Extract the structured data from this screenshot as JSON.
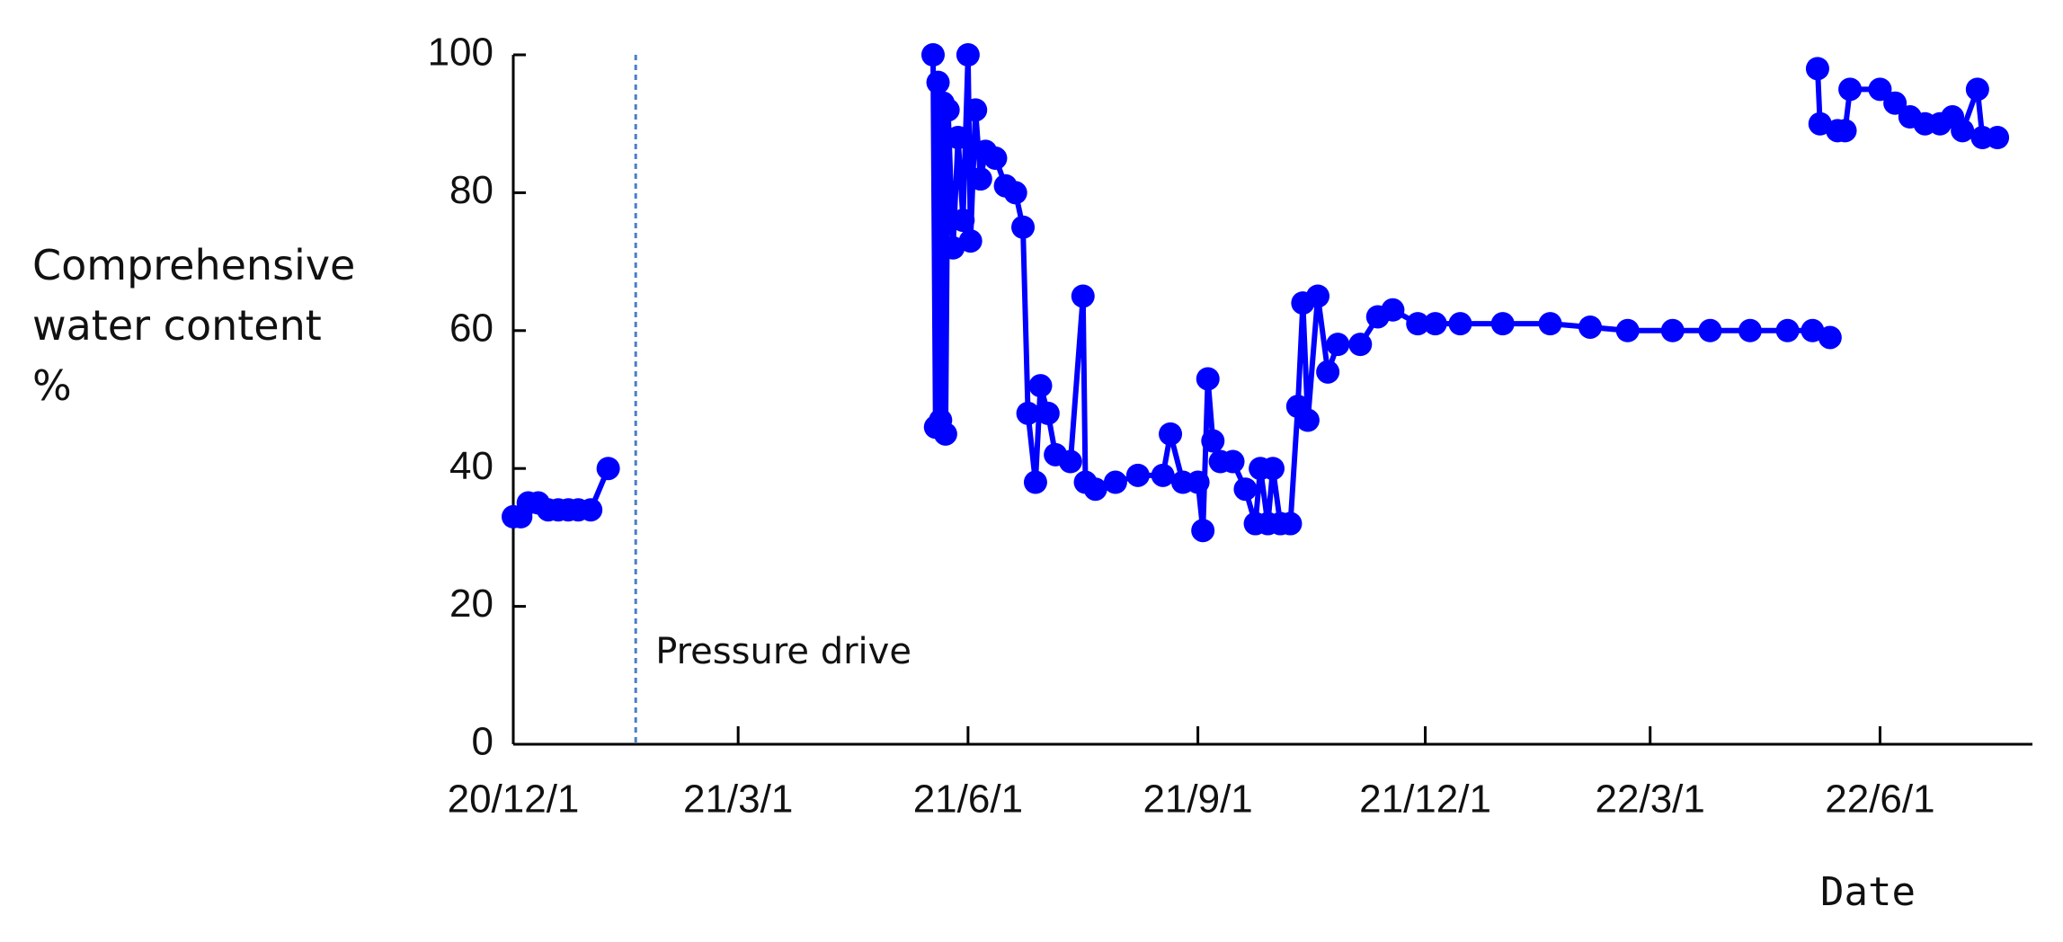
{
  "chart_data": {
    "type": "line",
    "ylabel": "Comprehensive water content %",
    "xlabel": "Date",
    "color": "#0000ff",
    "markers": true,
    "vline": {
      "x": "2021-01-19",
      "label": "Pressure drive",
      "color": "#4a7fc8"
    },
    "xlim": [
      "2020-12-01",
      "2022-08-01"
    ],
    "xticks": [
      {
        "value": "2020-12-01",
        "label": "20/12/1"
      },
      {
        "value": "2021-03-01",
        "label": "21/3/1"
      },
      {
        "value": "2021-06-01",
        "label": "21/6/1"
      },
      {
        "value": "2021-09-01",
        "label": "21/9/1"
      },
      {
        "value": "2021-12-01",
        "label": "21/12/1"
      },
      {
        "value": "2022-03-01",
        "label": "22/3/1"
      },
      {
        "value": "2022-06-01",
        "label": "22/6/1"
      }
    ],
    "ylim": [
      0,
      100
    ],
    "yticks": [
      0,
      20,
      40,
      60,
      80,
      100
    ],
    "x": [
      "2020-12-01",
      "2020-12-04",
      "2020-12-07",
      "2020-12-11",
      "2020-12-15",
      "2020-12-19",
      "2020-12-23",
      "2020-12-27",
      "2021-01-01",
      "2021-01-08",
      "2021-03-01",
      "2021-05-18",
      "2021-05-19",
      "2021-05-20",
      "2021-05-21",
      "2021-05-22",
      "2021-05-23",
      "2021-05-24",
      "2021-05-26",
      "2021-05-28",
      "2021-05-30",
      "2021-06-01",
      "2021-06-02",
      "2021-06-04",
      "2021-06-06",
      "2021-06-08",
      "2021-06-12",
      "2021-06-16",
      "2021-06-20",
      "2021-06-23",
      "2021-06-25",
      "2021-06-28",
      "2021-06-30",
      "2021-07-03",
      "2021-07-06",
      "2021-07-12",
      "2021-07-17",
      "2021-07-18",
      "2021-07-22",
      "2021-07-30",
      "2021-08-08",
      "2021-08-18",
      "2021-08-21",
      "2021-08-26",
      "2021-09-01",
      "2021-09-03",
      "2021-09-05",
      "2021-09-07",
      "2021-09-10",
      "2021-09-15",
      "2021-09-20",
      "2021-09-24",
      "2021-09-26",
      "2021-09-29",
      "2021-10-01",
      "2021-10-04",
      "2021-10-08",
      "2021-10-11",
      "2021-10-13",
      "2021-10-15",
      "2021-10-19",
      "2021-10-23",
      "2021-10-27",
      "2021-11-05",
      "2021-11-12",
      "2021-11-18",
      "2021-11-28",
      "2021-12-05",
      "2021-12-15",
      "2022-01-01",
      "2022-01-20",
      "2022-02-05",
      "2022-02-20",
      "2022-03-10",
      "2022-03-25",
      "2022-04-10",
      "2022-04-25",
      "2022-05-05",
      "2022-05-12",
      "2022-05-14",
      "2022-05-07",
      "2022-05-08",
      "2022-05-15",
      "2022-05-18",
      "2022-05-20",
      "2022-06-01",
      "2022-06-07",
      "2022-06-13",
      "2022-06-19",
      "2022-06-25",
      "2022-06-30",
      "2022-07-04",
      "2022-07-10",
      "2022-07-12",
      "2022-07-18"
    ],
    "values": [
      33,
      33,
      35,
      35,
      34,
      34,
      34,
      34,
      34,
      40,
      null,
      100,
      46,
      96,
      47,
      93,
      45,
      92,
      72,
      88,
      76,
      100,
      73,
      92,
      82,
      86,
      85,
      81,
      80,
      75,
      48,
      38,
      52,
      48,
      42,
      41,
      65,
      38,
      37,
      38,
      39,
      39,
      45,
      38,
      38,
      31,
      53,
      44,
      41,
      41,
      37,
      32,
      40,
      32,
      40,
      32,
      32,
      49,
      64,
      47,
      65,
      54,
      58,
      58,
      62,
      63,
      61,
      61,
      61,
      61,
      61,
      60.5,
      60,
      60,
      60,
      60,
      60,
      60,
      59,
      null,
      98,
      90,
      89,
      89,
      95,
      95,
      93,
      91,
      90,
      90,
      91,
      89,
      95,
      88,
      88
    ]
  }
}
